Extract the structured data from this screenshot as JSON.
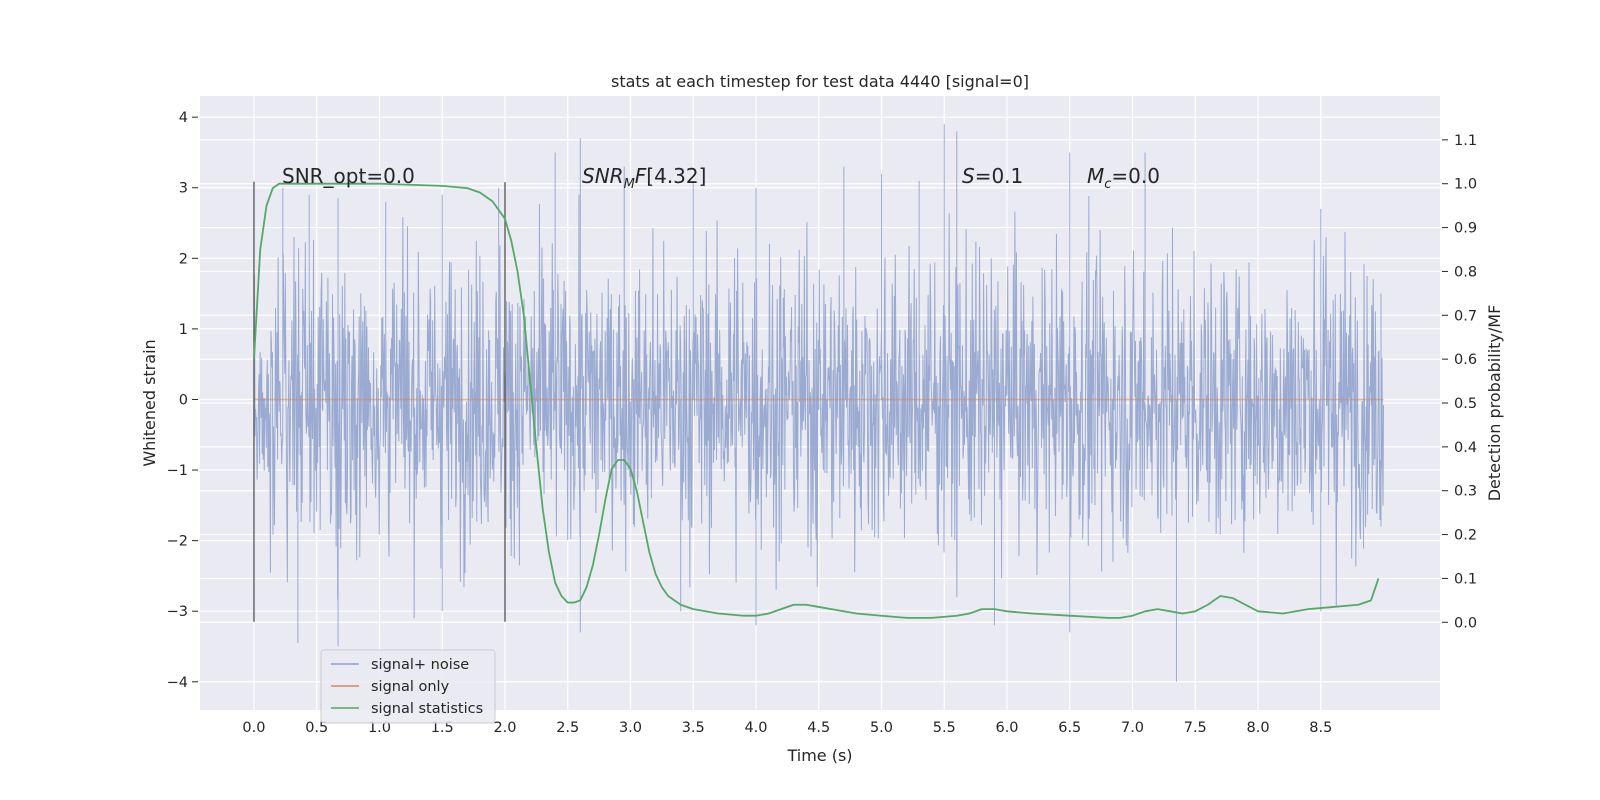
{
  "chart_data": {
    "type": "line",
    "title": "stats at each timestep for test data 4440 [signal=0]",
    "xlabel": "Time (s)",
    "ylabel": "Whitened strain",
    "y2label": "Detection probability/MF",
    "xlim": [
      -0.43,
      9.45
    ],
    "ylim": [
      -4.4,
      4.3
    ],
    "y2lim": [
      -0.2,
      1.2
    ],
    "x_ticks": [
      "0.0",
      "0.5",
      "1.0",
      "1.5",
      "2.0",
      "2.5",
      "3.0",
      "3.5",
      "4.0",
      "4.5",
      "5.0",
      "5.5",
      "6.0",
      "6.5",
      "7.0",
      "7.5",
      "8.0",
      "8.5"
    ],
    "y_ticks": [
      "4",
      "3",
      "2",
      "1",
      "0",
      "−1",
      "−2",
      "−3",
      "−4"
    ],
    "y2_ticks": [
      "1.1",
      "1.0",
      "0.9",
      "0.8",
      "0.7",
      "0.6",
      "0.5",
      "0.4",
      "0.3",
      "0.2",
      "0.1",
      "0.0"
    ],
    "grid": true,
    "legend_position": "lower-left",
    "annotations": {
      "snr_opt": "SNR_opt=0.0",
      "snr_mf": "[4.32]",
      "s_value": "=0.1",
      "mc_value": "=0.0"
    },
    "markers": [
      0.0,
      2.0
    ],
    "series": [
      {
        "name": "signal+ noise",
        "color": "#8c9fcb",
        "axis": "left",
        "noise_sigma": 1.0,
        "x_range": [
          0.0,
          9.0
        ],
        "envelope_peaks_upper": [
          [
            0.0,
            3.1
          ],
          [
            0.23,
            3.0
          ],
          [
            0.44,
            2.9
          ],
          [
            0.67,
            2.85
          ],
          [
            1.05,
            2.8
          ],
          [
            1.5,
            2.9
          ],
          [
            1.95,
            3.0
          ],
          [
            2.4,
            3.5
          ],
          [
            2.6,
            3.7
          ],
          [
            2.95,
            3.3
          ],
          [
            3.5,
            3.1
          ],
          [
            4.0,
            3.0
          ],
          [
            4.7,
            3.3
          ],
          [
            5.0,
            3.2
          ],
          [
            5.3,
            3.1
          ],
          [
            5.5,
            3.9
          ],
          [
            5.6,
            3.8
          ],
          [
            6.5,
            3.5
          ],
          [
            7.1,
            3.5
          ],
          [
            8.5,
            2.7
          ],
          [
            8.98,
            1.5
          ]
        ],
        "envelope_peaks_lower": [
          [
            0.0,
            -1.8
          ],
          [
            0.35,
            -3.45
          ],
          [
            0.67,
            -3.5
          ],
          [
            1.5,
            -3.0
          ],
          [
            2.6,
            -3.3
          ],
          [
            3.4,
            -3.0
          ],
          [
            4.0,
            -3.2
          ],
          [
            5.9,
            -3.2
          ],
          [
            6.5,
            -3.3
          ],
          [
            7.35,
            -4.0
          ],
          [
            8.5,
            -3.0
          ],
          [
            8.98,
            -1.8
          ]
        ]
      },
      {
        "name": "signal only",
        "color": "#dd8452",
        "axis": "left",
        "x": [
          0.0,
          9.0
        ],
        "y": [
          0.0,
          0.0
        ]
      },
      {
        "name": "signal statistics",
        "color": "#55a868",
        "axis": "right",
        "x": [
          0.0,
          0.05,
          0.1,
          0.15,
          0.2,
          0.3,
          0.5,
          1.0,
          1.5,
          1.7,
          1.8,
          1.9,
          2.0,
          2.05,
          2.1,
          2.15,
          2.2,
          2.25,
          2.3,
          2.35,
          2.4,
          2.45,
          2.5,
          2.55,
          2.6,
          2.65,
          2.7,
          2.75,
          2.8,
          2.85,
          2.9,
          2.95,
          3.0,
          3.05,
          3.1,
          3.15,
          3.2,
          3.25,
          3.3,
          3.4,
          3.5,
          3.7,
          3.9,
          4.0,
          4.1,
          4.2,
          4.3,
          4.4,
          4.5,
          4.6,
          4.8,
          5.0,
          5.2,
          5.4,
          5.6,
          5.7,
          5.8,
          5.9,
          6.0,
          6.2,
          6.5,
          6.8,
          6.9,
          7.0,
          7.1,
          7.2,
          7.3,
          7.4,
          7.5,
          7.6,
          7.7,
          7.8,
          7.9,
          8.0,
          8.2,
          8.4,
          8.6,
          8.8,
          8.9,
          8.96
        ],
        "y": [
          0.6,
          0.85,
          0.95,
          0.99,
          1.0,
          1.0,
          1.0,
          1.0,
          0.995,
          0.99,
          0.98,
          0.96,
          0.92,
          0.87,
          0.8,
          0.7,
          0.55,
          0.4,
          0.26,
          0.16,
          0.09,
          0.06,
          0.045,
          0.045,
          0.05,
          0.08,
          0.13,
          0.2,
          0.28,
          0.35,
          0.37,
          0.37,
          0.35,
          0.3,
          0.23,
          0.16,
          0.11,
          0.08,
          0.06,
          0.04,
          0.03,
          0.02,
          0.015,
          0.015,
          0.02,
          0.03,
          0.04,
          0.04,
          0.035,
          0.03,
          0.02,
          0.015,
          0.01,
          0.01,
          0.015,
          0.02,
          0.03,
          0.03,
          0.025,
          0.02,
          0.015,
          0.01,
          0.01,
          0.015,
          0.025,
          0.03,
          0.025,
          0.02,
          0.025,
          0.04,
          0.06,
          0.055,
          0.04,
          0.025,
          0.02,
          0.03,
          0.035,
          0.04,
          0.05,
          0.1
        ]
      }
    ]
  }
}
